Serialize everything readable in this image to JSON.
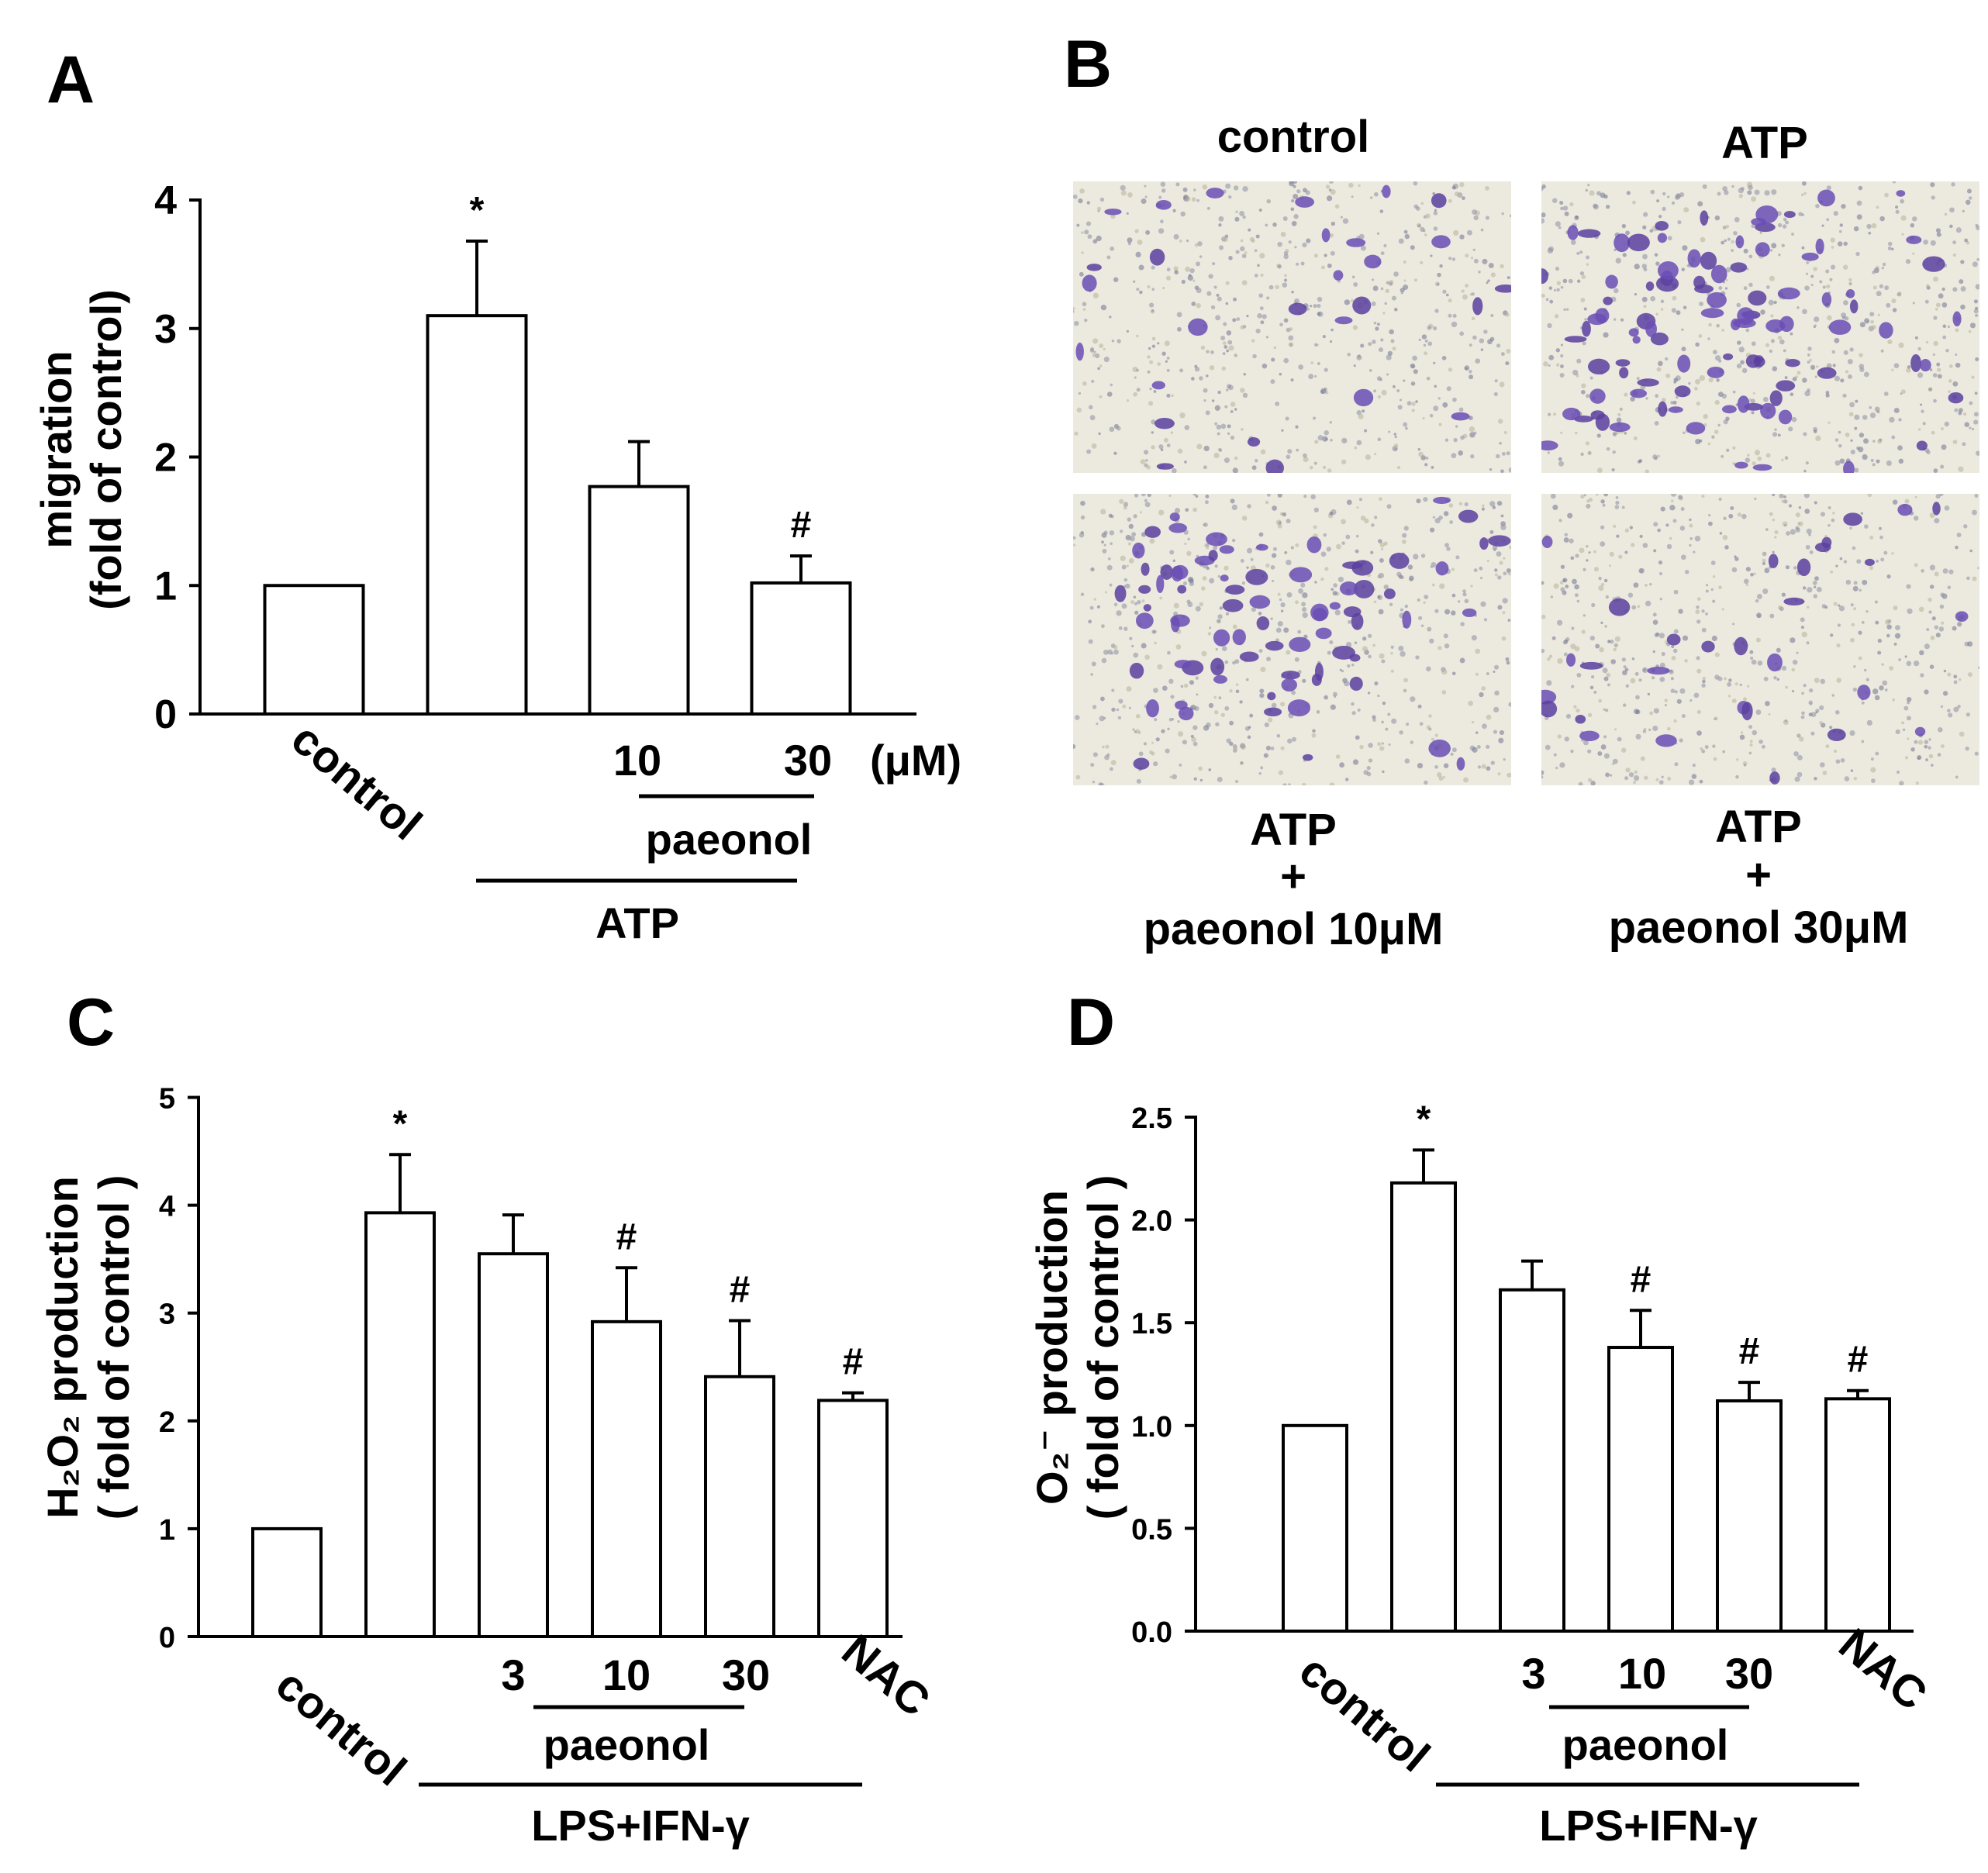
{
  "panels": {
    "A": {
      "letter": "A",
      "ylabel_line1": "migration",
      "ylabel_line2": "(fold of control)",
      "yticks": [
        "0",
        "1",
        "2",
        "3",
        "4"
      ],
      "control_label": "control",
      "dose_labels": [
        "10",
        "30"
      ],
      "unit": "(μM)",
      "subgroup_label": "paeonol",
      "group_label": "ATP"
    },
    "B": {
      "letter": "B",
      "images": [
        {
          "label": "control",
          "density": "low"
        },
        {
          "label": "ATP",
          "density": "high"
        },
        {
          "label_lines": [
            "ATP",
            "+",
            "paeonol 10μM"
          ],
          "density": "medium-high"
        },
        {
          "label_lines": [
            "ATP",
            "+",
            "paeonol 30μM"
          ],
          "density": "low"
        }
      ]
    },
    "C": {
      "letter": "C",
      "ylabel_line1": "H₂O₂ production",
      "ylabel_line2": "( fold of control )",
      "yticks": [
        "0",
        "1",
        "2",
        "3",
        "4",
        "5"
      ],
      "control_label": "control",
      "dose_labels": [
        "3",
        "10",
        "30"
      ],
      "nac_label": "NAC",
      "subgroup_label": "paeonol",
      "group_label": "LPS+IFN-γ"
    },
    "D": {
      "letter": "D",
      "ylabel_line1": "O₂⁻ production",
      "ylabel_line2": "( fold of control )",
      "yticks": [
        "0.0",
        "0.5",
        "1.0",
        "1.5",
        "2.0",
        "2.5"
      ],
      "control_label": "control",
      "dose_labels": [
        "3",
        "10",
        "30"
      ],
      "nac_label": "NAC",
      "subgroup_label": "paeonol",
      "group_label": "LPS+IFN-γ"
    }
  },
  "chart_data": [
    {
      "panel": "A",
      "type": "bar",
      "categories": [
        "control",
        "ATP",
        "ATP + paeonol 10",
        "ATP + paeonol 30"
      ],
      "values": [
        1.0,
        3.1,
        1.77,
        1.02
      ],
      "errors": [
        0,
        0.58,
        0.35,
        0.21
      ],
      "significance": [
        "",
        "*",
        "",
        "#"
      ],
      "ylabel": "migration (fold of control)",
      "ylim": [
        0,
        4
      ]
    },
    {
      "panel": "C",
      "type": "bar",
      "categories": [
        "control",
        "LPS+IFN-γ",
        "paeonol 3",
        "paeonol 10",
        "paeonol 30",
        "NAC"
      ],
      "values": [
        1.0,
        3.93,
        3.55,
        2.92,
        2.41,
        2.19
      ],
      "errors": [
        0,
        0.54,
        0.36,
        0.5,
        0.52,
        0.07
      ],
      "significance": [
        "",
        "*",
        "",
        "#",
        "#",
        "#"
      ],
      "ylabel": "H₂O₂ production ( fold of control )",
      "ylim": [
        0,
        5.5
      ]
    },
    {
      "panel": "D",
      "type": "bar",
      "categories": [
        "control",
        "LPS+IFN-γ",
        "paeonol 3",
        "paeonol 10",
        "paeonol 30",
        "NAC"
      ],
      "values": [
        1.0,
        2.18,
        1.66,
        1.38,
        1.12,
        1.13
      ],
      "errors": [
        0,
        0.16,
        0.14,
        0.18,
        0.09,
        0.04
      ],
      "significance": [
        "",
        "*",
        "",
        "#",
        "#",
        "#"
      ],
      "ylabel": "O₂⁻ production ( fold of control )",
      "ylim": [
        0,
        2.5
      ]
    }
  ]
}
